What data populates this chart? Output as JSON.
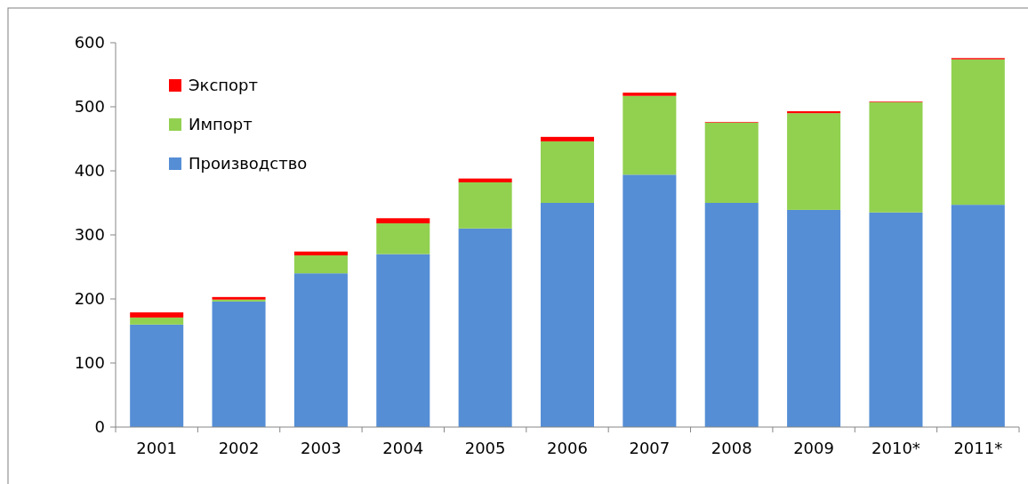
{
  "chart_data": {
    "type": "bar",
    "stacked": true,
    "categories": [
      "2001",
      "2002",
      "2003",
      "2004",
      "2005",
      "2006",
      "2007",
      "2008",
      "2009",
      "2010*",
      "2011*"
    ],
    "series": [
      {
        "name": "Производство",
        "color": "#558ed5",
        "values": [
          160,
          196,
          240,
          270,
          310,
          350,
          394,
          350,
          339,
          335,
          347
        ]
      },
      {
        "name": "Импорт",
        "color": "#92d050",
        "values": [
          11,
          3,
          28,
          48,
          72,
          96,
          123,
          125,
          151,
          172,
          227
        ]
      },
      {
        "name": "Экспорт",
        "color": "#ff0000",
        "values": [
          8,
          4,
          6,
          8,
          6,
          7,
          5,
          1,
          3,
          1,
          2
        ]
      }
    ],
    "ylim": [
      0,
      600
    ],
    "yticks": [
      0,
      100,
      200,
      300,
      400,
      500,
      600
    ],
    "grid": false,
    "legend": "top left"
  }
}
